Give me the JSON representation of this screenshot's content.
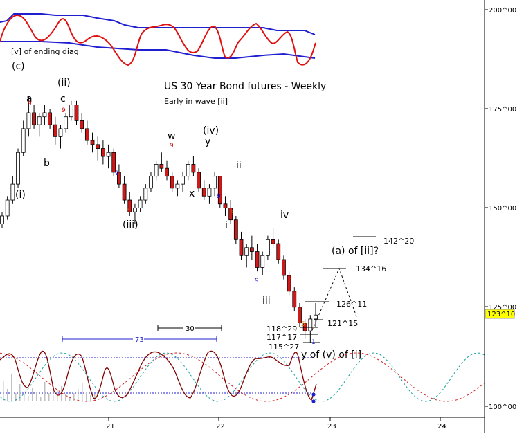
{
  "chart_data": {
    "type": "candlestick",
    "title": "US 30 Year Bond futures - Weekly",
    "subtitle": "Early in wave [ii]",
    "price_axis": {
      "ticks": [
        "200^00",
        "175^00",
        "150^00",
        "125^00",
        "100^00"
      ],
      "tick_values": [
        200,
        175,
        150,
        125,
        100
      ],
      "current_price": "123^10"
    },
    "time_axis": {
      "ticks": [
        "21",
        "22",
        "23",
        "24"
      ]
    },
    "wave_labels": [
      {
        "text": "[v] of ending diag"
      },
      {
        "text": "(c)"
      },
      {
        "text": "a"
      },
      {
        "text": "c"
      },
      {
        "text": "(ii)"
      },
      {
        "text": "b"
      },
      {
        "text": "(i)"
      },
      {
        "text": "(iii)"
      },
      {
        "text": "w"
      },
      {
        "text": "x"
      },
      {
        "text": "(iv)"
      },
      {
        "text": "y"
      },
      {
        "text": "ii"
      },
      {
        "text": "i"
      },
      {
        "text": "iii"
      },
      {
        "text": "iv"
      },
      {
        "text": "(a) of [ii]?"
      },
      {
        "text": "y of (v) of [i]"
      }
    ],
    "count_labels": [
      "9",
      "9",
      "9",
      "9",
      "5",
      "5",
      "9",
      "5"
    ],
    "price_levels": [
      {
        "label": "142^20"
      },
      {
        "label": "134^16"
      },
      {
        "label": "126^11"
      },
      {
        "label": "121^15"
      },
      {
        "label": "118^29"
      },
      {
        "label": "117^17"
      },
      {
        "label": "115^27"
      }
    ],
    "cycle_annotations": [
      {
        "label": "73"
      },
      {
        "label": "30"
      }
    ],
    "indicator_marker": "1",
    "ohlc_approx": [
      [
        146,
        149,
        145,
        148
      ],
      [
        148,
        153,
        147,
        152
      ],
      [
        152,
        158,
        151,
        156
      ],
      [
        156,
        165,
        155,
        164
      ],
      [
        164,
        172,
        163,
        170
      ],
      [
        170,
        178,
        168,
        174
      ],
      [
        174,
        176,
        170,
        171
      ],
      [
        171,
        174,
        168,
        173
      ],
      [
        173,
        176,
        171,
        174
      ],
      [
        174,
        175,
        170,
        171
      ],
      [
        171,
        173,
        166,
        168
      ],
      [
        168,
        171,
        165,
        170
      ],
      [
        170,
        174,
        169,
        173
      ],
      [
        173,
        177,
        172,
        176
      ],
      [
        176,
        177,
        171,
        172
      ],
      [
        172,
        174,
        169,
        170
      ],
      [
        170,
        172,
        166,
        167
      ],
      [
        167,
        169,
        164,
        166
      ],
      [
        166,
        168,
        162,
        165
      ],
      [
        165,
        167,
        161,
        163
      ],
      [
        163,
        166,
        160,
        164
      ],
      [
        164,
        165,
        158,
        159
      ],
      [
        159,
        161,
        155,
        156
      ],
      [
        156,
        158,
        151,
        152
      ],
      [
        152,
        154,
        148,
        149
      ],
      [
        149,
        151,
        146,
        150
      ],
      [
        150,
        153,
        149,
        152
      ],
      [
        152,
        156,
        151,
        155
      ],
      [
        155,
        159,
        154,
        158
      ],
      [
        158,
        162,
        157,
        161
      ],
      [
        161,
        164,
        159,
        160
      ],
      [
        160,
        162,
        157,
        158
      ],
      [
        158,
        159,
        154,
        155
      ],
      [
        155,
        157,
        153,
        156
      ],
      [
        156,
        159,
        154,
        158
      ],
      [
        158,
        162,
        157,
        161
      ],
      [
        161,
        163,
        158,
        159
      ],
      [
        159,
        160,
        154,
        155
      ],
      [
        155,
        157,
        152,
        153
      ],
      [
        153,
        156,
        151,
        155
      ],
      [
        155,
        159,
        153,
        158
      ],
      [
        158,
        158,
        150,
        151
      ],
      [
        151,
        153,
        148,
        150
      ],
      [
        150,
        152,
        146,
        147
      ],
      [
        147,
        148,
        141,
        142
      ],
      [
        142,
        144,
        137,
        138
      ],
      [
        138,
        141,
        135,
        140
      ],
      [
        140,
        143,
        137,
        139
      ],
      [
        139,
        141,
        134,
        135
      ],
      [
        135,
        139,
        133,
        138
      ],
      [
        138,
        143,
        137,
        142
      ],
      [
        142,
        145,
        140,
        141
      ],
      [
        141,
        142,
        136,
        137
      ],
      [
        137,
        138,
        132,
        133
      ],
      [
        133,
        134,
        128,
        129
      ],
      [
        129,
        130,
        124,
        125
      ],
      [
        125,
        126,
        120,
        121
      ],
      [
        121,
        122,
        117,
        119
      ],
      [
        119,
        123,
        116,
        122
      ],
      [
        122,
        126,
        120,
        123
      ]
    ]
  }
}
